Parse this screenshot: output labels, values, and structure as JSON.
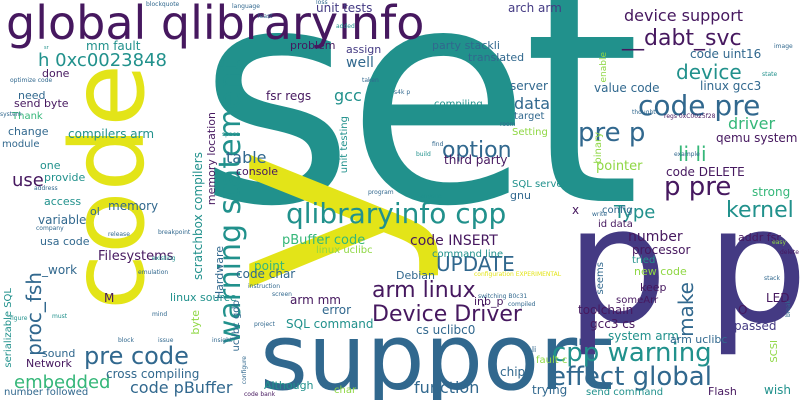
{
  "colors": {
    "background": "#ffffff",
    "purple": "#46185f",
    "indigo": "#443a83",
    "blue": "#31688e",
    "teal": "#21918c",
    "green": "#35b779",
    "lime": "#8fd744",
    "yellow": "#e3e418"
  },
  "words": {
    "set": "set",
    "code": "code",
    "support": "support",
    "pp": "p p",
    "y": "y",
    "global_qlibraryinfo": "global qlibraryinfo",
    "warning_statement": "warning statement",
    "qlibraryinfo_cpp": "qlibraryinfo cpp",
    "code_pre": "code pre",
    "pre_p": "pre p",
    "p_pre": "p pre",
    "cpp_warning": "cpp warning",
    "effect_global": "effect global",
    "pre_code": "pre code",
    "arm_linux": "arm linux",
    "device_driver": "Device Driver",
    "dabt_svc": "__dabt_svc",
    "device_support": "device support",
    "device": "device",
    "kernel": "kernel",
    "option": "option",
    "update": "UPDATE",
    "proc_fsh": "proc_fsh",
    "h_0xc": "h 0xc0023848",
    "li_li": "li li",
    "make": "make",
    "type": "Type",
    "embedded": "embedded",
    "code_pbuffer": "code pBuffer",
    "function": "function",
    "use": "use",
    "table": "table",
    "gcc": "gcc",
    "data": "data",
    "driver": "driver",
    "code_insert": "code INSERT",
    "number": "number",
    "well": "well",
    "mm_fault": "mm fault",
    "unit_tests": "unit tests",
    "arch_arm": "arch arm",
    "code_uint16": "code uint16",
    "linux_gcc3": "linux gcc3",
    "value_code": "value code",
    "fsr_regs": "fsr regs",
    "scratchbox_compilers": "scratchbox compilers",
    "memory_location": "memory location",
    "pbuffer_code": "pBuffer code",
    "sql_command": "SQL command",
    "error": "error",
    "arm_mm": "arm mm",
    "point": "point",
    "code_char": "code char",
    "compilers_arm": "compilers arm",
    "send_byte": "send byte",
    "filesystems": "Filesystems",
    "memory": "memory",
    "variable": "variable",
    "cross_compiling": "cross compiling",
    "pre_code2": "pre code",
    "gcc3_cs": "gcc3 cs",
    "toolchain": "toolchain",
    "processor": "processor",
    "passed": "passed",
    "system_arm": "system arm",
    "qemu_system": "qemu system",
    "code_delete": "code DELETE",
    "pointer": "pointer",
    "strong": "strong",
    "led": "LED",
    "wish": "wish",
    "flash": "Flash",
    "send_command": "send command",
    "trying": "trying",
    "chip": "chip",
    "although": "Although",
    "console": "console",
    "third_party": "third party",
    "sql_server": "SQL server",
    "server": "server",
    "compiling": "compiling",
    "setting": "Setting",
    "target": "target",
    "problem": "problem",
    "assign": "assign",
    "party_stackli": "party stackli",
    "translated": "translated",
    "done": "done",
    "need": "need",
    "thank": "Thank",
    "change": "change",
    "module": "module",
    "one": "one",
    "provide": "provide",
    "access": "access",
    "usa_code": "usa code",
    "work": "_work",
    "network": "Network",
    "sound": "sound",
    "number_followed": "number followed",
    "hardware": "Hardware",
    "linux_source": "linux source",
    "byte": "byte",
    "uclibc_gdb": "uclibc gdb",
    "command_line": "command line",
    "linux_uclibc": "linux uclibc",
    "cs_uclibc0": "cs uclibc0",
    "debian": "Debian",
    "inb_p": "inb_p",
    "keep": "keep",
    "new_code": "new code",
    "tried": "tried",
    "config": "config",
    "id_data": "id data",
    "addr_fsr": "addr fsr",
    "somearr": "someArr",
    "seems": "seems",
    "gnu": "gnu",
    "x": "x",
    "o": "O",
    "c": "c",
    "m": "M",
    "ol": "ol",
    "unit_testing": "unit testing",
    "regs_0xc": "regs 0xC0025f28",
    "binary": "binary",
    "enable": "enable",
    "fault_c": "fault c",
    "serializable_sql": "serializable SQL",
    "scsi": "SCSI",
    "arm_uclibc": "arm uclibc",
    "ul_li": "ul li",
    "code_bank": "code bank",
    "char": "char",
    "blockquote": "blockquote",
    "language": "language",
    "least": "least",
    "loss": "loss",
    "added": "added",
    "sr_note": "sr",
    "taken": "taken",
    "state": "state",
    "easy": "easy",
    "delete": "delete",
    "example": "example",
    "find": "find",
    "room": "room",
    "build": "build",
    "space": "space",
    "insight": "insight",
    "image": "image",
    "thought": "thought",
    "program": "program",
    "anyone": "anyone",
    "write": "write",
    "compiled": "compiled",
    "must": "must",
    "figure": "figure",
    "issue": "issue",
    "mind": "mind",
    "blocks": "block",
    "release": "release",
    "emulation": "emulation",
    "existing": "existing",
    "instruction": "instruction",
    "screen": "screen",
    "project": "project",
    "configure": "configure",
    "company": "company",
    "address": "address",
    "system": "system",
    "breakpoint": "breakpoint",
    "optimize_code": "optimize code",
    "s4_code": "s4k p",
    "switching": "switching B0c31",
    "configuration_experimental": "configuration EXPERIMENTAL",
    "break": "break",
    "stack": "stack"
  }
}
